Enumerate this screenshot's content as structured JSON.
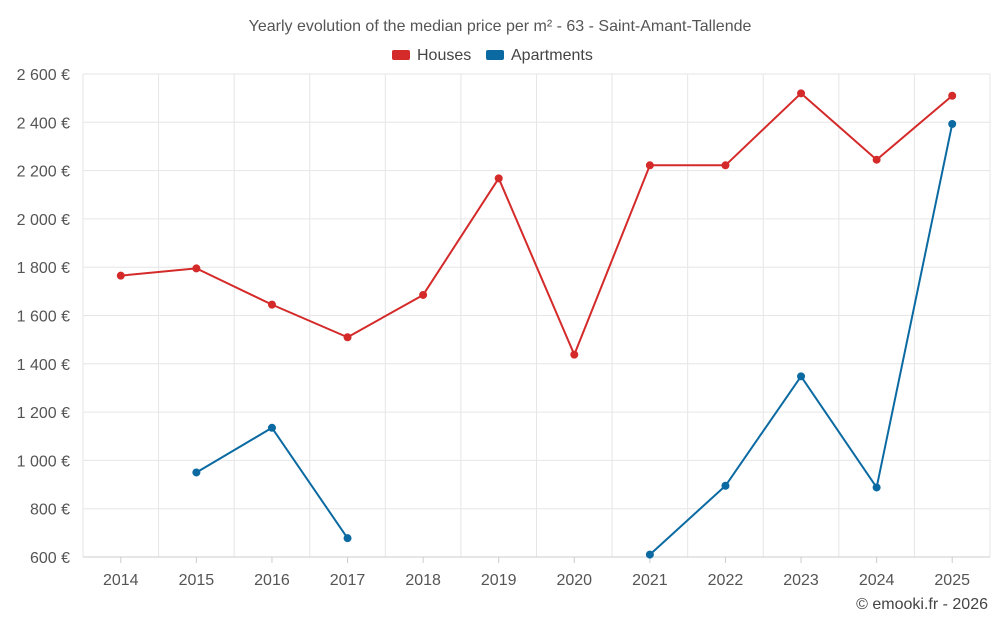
{
  "chart_data": {
    "type": "line",
    "title": "Yearly evolution of the median price per m² - 63 - Saint-Amant-Tallende",
    "categories": [
      "2014",
      "2015",
      "2016",
      "2017",
      "2018",
      "2019",
      "2020",
      "2021",
      "2022",
      "2023",
      "2024",
      "2025"
    ],
    "y_ticks": [
      600,
      800,
      1000,
      1200,
      1400,
      1600,
      1800,
      2000,
      2200,
      2400,
      2600
    ],
    "y_tick_labels": [
      "600 €",
      "800 €",
      "1 000 €",
      "1 200 €",
      "1 400 €",
      "1 600 €",
      "1 800 €",
      "2 000 €",
      "2 200 €",
      "2 400 €",
      "2 600 €"
    ],
    "ylim": [
      600,
      2600
    ],
    "grid": true,
    "legend_position": "top-center",
    "series": [
      {
        "name": "Houses",
        "color": "#d42a2a",
        "values": [
          1765,
          1795,
          1645,
          1510,
          1685,
          2168,
          1438,
          2222,
          2222,
          2520,
          2245,
          2510
        ]
      },
      {
        "name": "Apartments",
        "color": "#0b6aa2",
        "values": [
          null,
          950,
          1135,
          678,
          null,
          null,
          null,
          610,
          895,
          1348,
          888,
          2393
        ]
      }
    ],
    "credit": "© emooki.fr - 2026"
  }
}
